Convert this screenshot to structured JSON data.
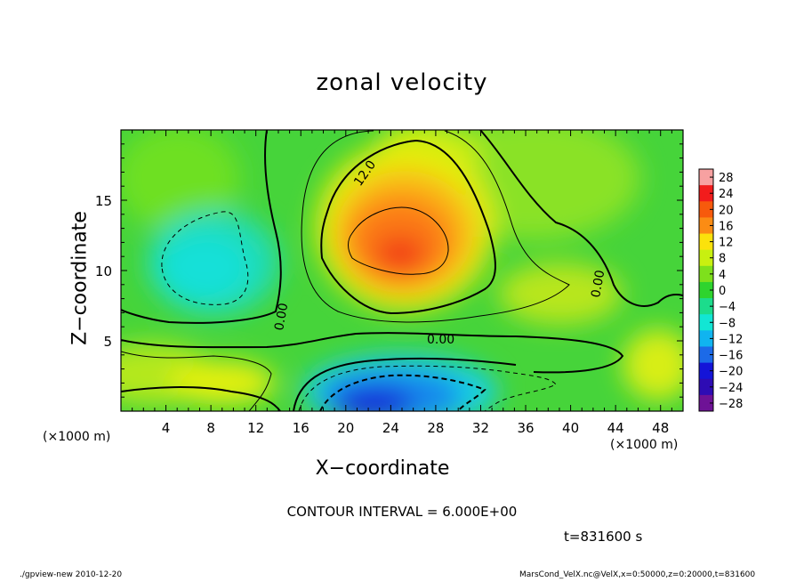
{
  "chart_data": {
    "type": "heatmap",
    "title": "zonal velocity",
    "xlabel": "X−coordinate",
    "ylabel": "Z−coordinate",
    "x_unit_note": "(×1000 m)",
    "x_unit_note_right": "(×1000 m)",
    "x_ticks": [
      "4",
      "8",
      "12",
      "16",
      "20",
      "24",
      "28",
      "32",
      "36",
      "40",
      "44",
      "48"
    ],
    "x_tick_values": [
      4,
      8,
      12,
      16,
      20,
      24,
      28,
      32,
      36,
      40,
      44,
      48
    ],
    "y_ticks": [
      "5",
      "10",
      "15"
    ],
    "y_tick_values": [
      5,
      10,
      15
    ],
    "xlim": [
      0,
      50
    ],
    "ylim": [
      0,
      20
    ],
    "colorbar_ticks": [
      "28",
      "24",
      "20",
      "16",
      "12",
      "8",
      "4",
      "0",
      "−4",
      "−8",
      "−12",
      "−16",
      "−20",
      "−24",
      "−28"
    ],
    "colorbar_values": [
      28,
      24,
      20,
      16,
      12,
      8,
      4,
      0,
      -4,
      -8,
      -12,
      -16,
      -20,
      -24,
      -28
    ],
    "contour_labels": [
      "12.0",
      "0.00",
      "0.00",
      "0.00"
    ],
    "contour_interval_text": "CONTOUR INTERVAL = 6.000E+00",
    "time_text": "t=831600 s",
    "features": [
      {
        "kind": "max",
        "x": 25,
        "z": 11.5,
        "value": 24
      },
      {
        "kind": "min",
        "x": 24,
        "z": 1,
        "value": -22
      },
      {
        "kind": "min",
        "x": 8,
        "z": 10,
        "value": -8
      }
    ]
  },
  "footer": {
    "left": "./gpview-new   2010-12-20",
    "right": "MarsCond_VelX.nc@VelX,x=0:50000,z=0:20000,t=831600"
  },
  "colors": {
    "colorbar": [
      "#f7a1a1",
      "#f21c1c",
      "#f75a0c",
      "#fb8c14",
      "#fbe20c",
      "#c8f010",
      "#7ee01c",
      "#2ed42e",
      "#1cdc8c",
      "#12e6d4",
      "#10b4f0",
      "#1c6ae8",
      "#1414d8",
      "#2e0cb4",
      "#6e1296"
    ]
  }
}
